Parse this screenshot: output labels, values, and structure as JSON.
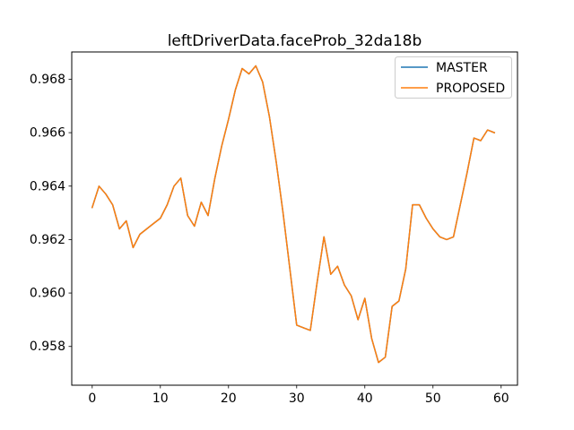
{
  "figure": {
    "title": "leftDriverData.faceProb_32da18b",
    "background": "#ffffff"
  },
  "legend": {
    "position": "upper right",
    "border_color": "#cccccc",
    "entries": [
      {
        "label": "MASTER",
        "color": "#1f77b4"
      },
      {
        "label": "PROPOSED",
        "color": "#ff7f0e"
      }
    ]
  },
  "chart_data": {
    "type": "line",
    "title": "leftDriverData.faceProb_32da18b",
    "xlabel": "",
    "ylabel": "",
    "grid": false,
    "legend_position": "upper right",
    "line_width": 1.5,
    "xlim": [
      -3.0,
      62.4
    ],
    "ylim": [
      0.95655,
      0.96902
    ],
    "x_tick_values": [
      0,
      10,
      20,
      30,
      40,
      50,
      60
    ],
    "x_tick_labels": [
      "0",
      "10",
      "20",
      "30",
      "40",
      "50",
      "60"
    ],
    "y_tick_values": [
      0.958,
      0.96,
      0.962,
      0.964,
      0.966,
      0.968
    ],
    "y_tick_labels": [
      "0.958",
      "0.960",
      "0.962",
      "0.964",
      "0.966",
      "0.968"
    ],
    "x": [
      0,
      1,
      2,
      3,
      4,
      5,
      6,
      7,
      8,
      9,
      10,
      11,
      12,
      13,
      14,
      15,
      16,
      17,
      18,
      19,
      20,
      21,
      22,
      23,
      24,
      25,
      26,
      27,
      28,
      29,
      30,
      31,
      32,
      33,
      34,
      35,
      36,
      37,
      38,
      39,
      40,
      41,
      42,
      43,
      44,
      45,
      46,
      47,
      48,
      49,
      50,
      51,
      52,
      53,
      54,
      55,
      56,
      57,
      58,
      59
    ],
    "series": [
      {
        "name": "MASTER",
        "color": "#1f77b4",
        "values": [
          0.9632,
          0.964,
          0.9637,
          0.9633,
          0.9624,
          0.9627,
          0.9617,
          0.9622,
          0.9624,
          0.9626,
          0.9628,
          0.9633,
          0.964,
          0.9643,
          0.9629,
          0.9625,
          0.9634,
          0.9629,
          0.9643,
          0.9655,
          0.9665,
          0.9676,
          0.9684,
          0.9682,
          0.9685,
          0.9679,
          0.9666,
          0.9649,
          0.963,
          0.9609,
          0.9588,
          0.9587,
          0.9586,
          0.9604,
          0.9621,
          0.9607,
          0.961,
          0.9603,
          0.9599,
          0.959,
          0.9598,
          0.9583,
          0.9574,
          0.9576,
          0.9595,
          0.9597,
          0.9609,
          0.9633,
          0.9633,
          0.9628,
          0.9624,
          0.9621,
          0.962,
          0.9621,
          0.9633,
          0.9645,
          0.9658,
          0.9657,
          0.9661,
          0.966
        ]
      },
      {
        "name": "PROPOSED",
        "color": "#ff7f0e",
        "values": [
          0.9632,
          0.964,
          0.9637,
          0.9633,
          0.9624,
          0.9627,
          0.9617,
          0.9622,
          0.9624,
          0.9626,
          0.9628,
          0.9633,
          0.964,
          0.9643,
          0.9629,
          0.9625,
          0.9634,
          0.9629,
          0.9643,
          0.9655,
          0.9665,
          0.9676,
          0.9684,
          0.9682,
          0.9685,
          0.9679,
          0.9666,
          0.9649,
          0.963,
          0.9609,
          0.9588,
          0.9587,
          0.9586,
          0.9604,
          0.9621,
          0.9607,
          0.961,
          0.9603,
          0.9599,
          0.959,
          0.9598,
          0.9583,
          0.9574,
          0.9576,
          0.9595,
          0.9597,
          0.9609,
          0.9633,
          0.9633,
          0.9628,
          0.9624,
          0.9621,
          0.962,
          0.9621,
          0.9633,
          0.9645,
          0.9658,
          0.9657,
          0.9661,
          0.966
        ]
      }
    ]
  }
}
